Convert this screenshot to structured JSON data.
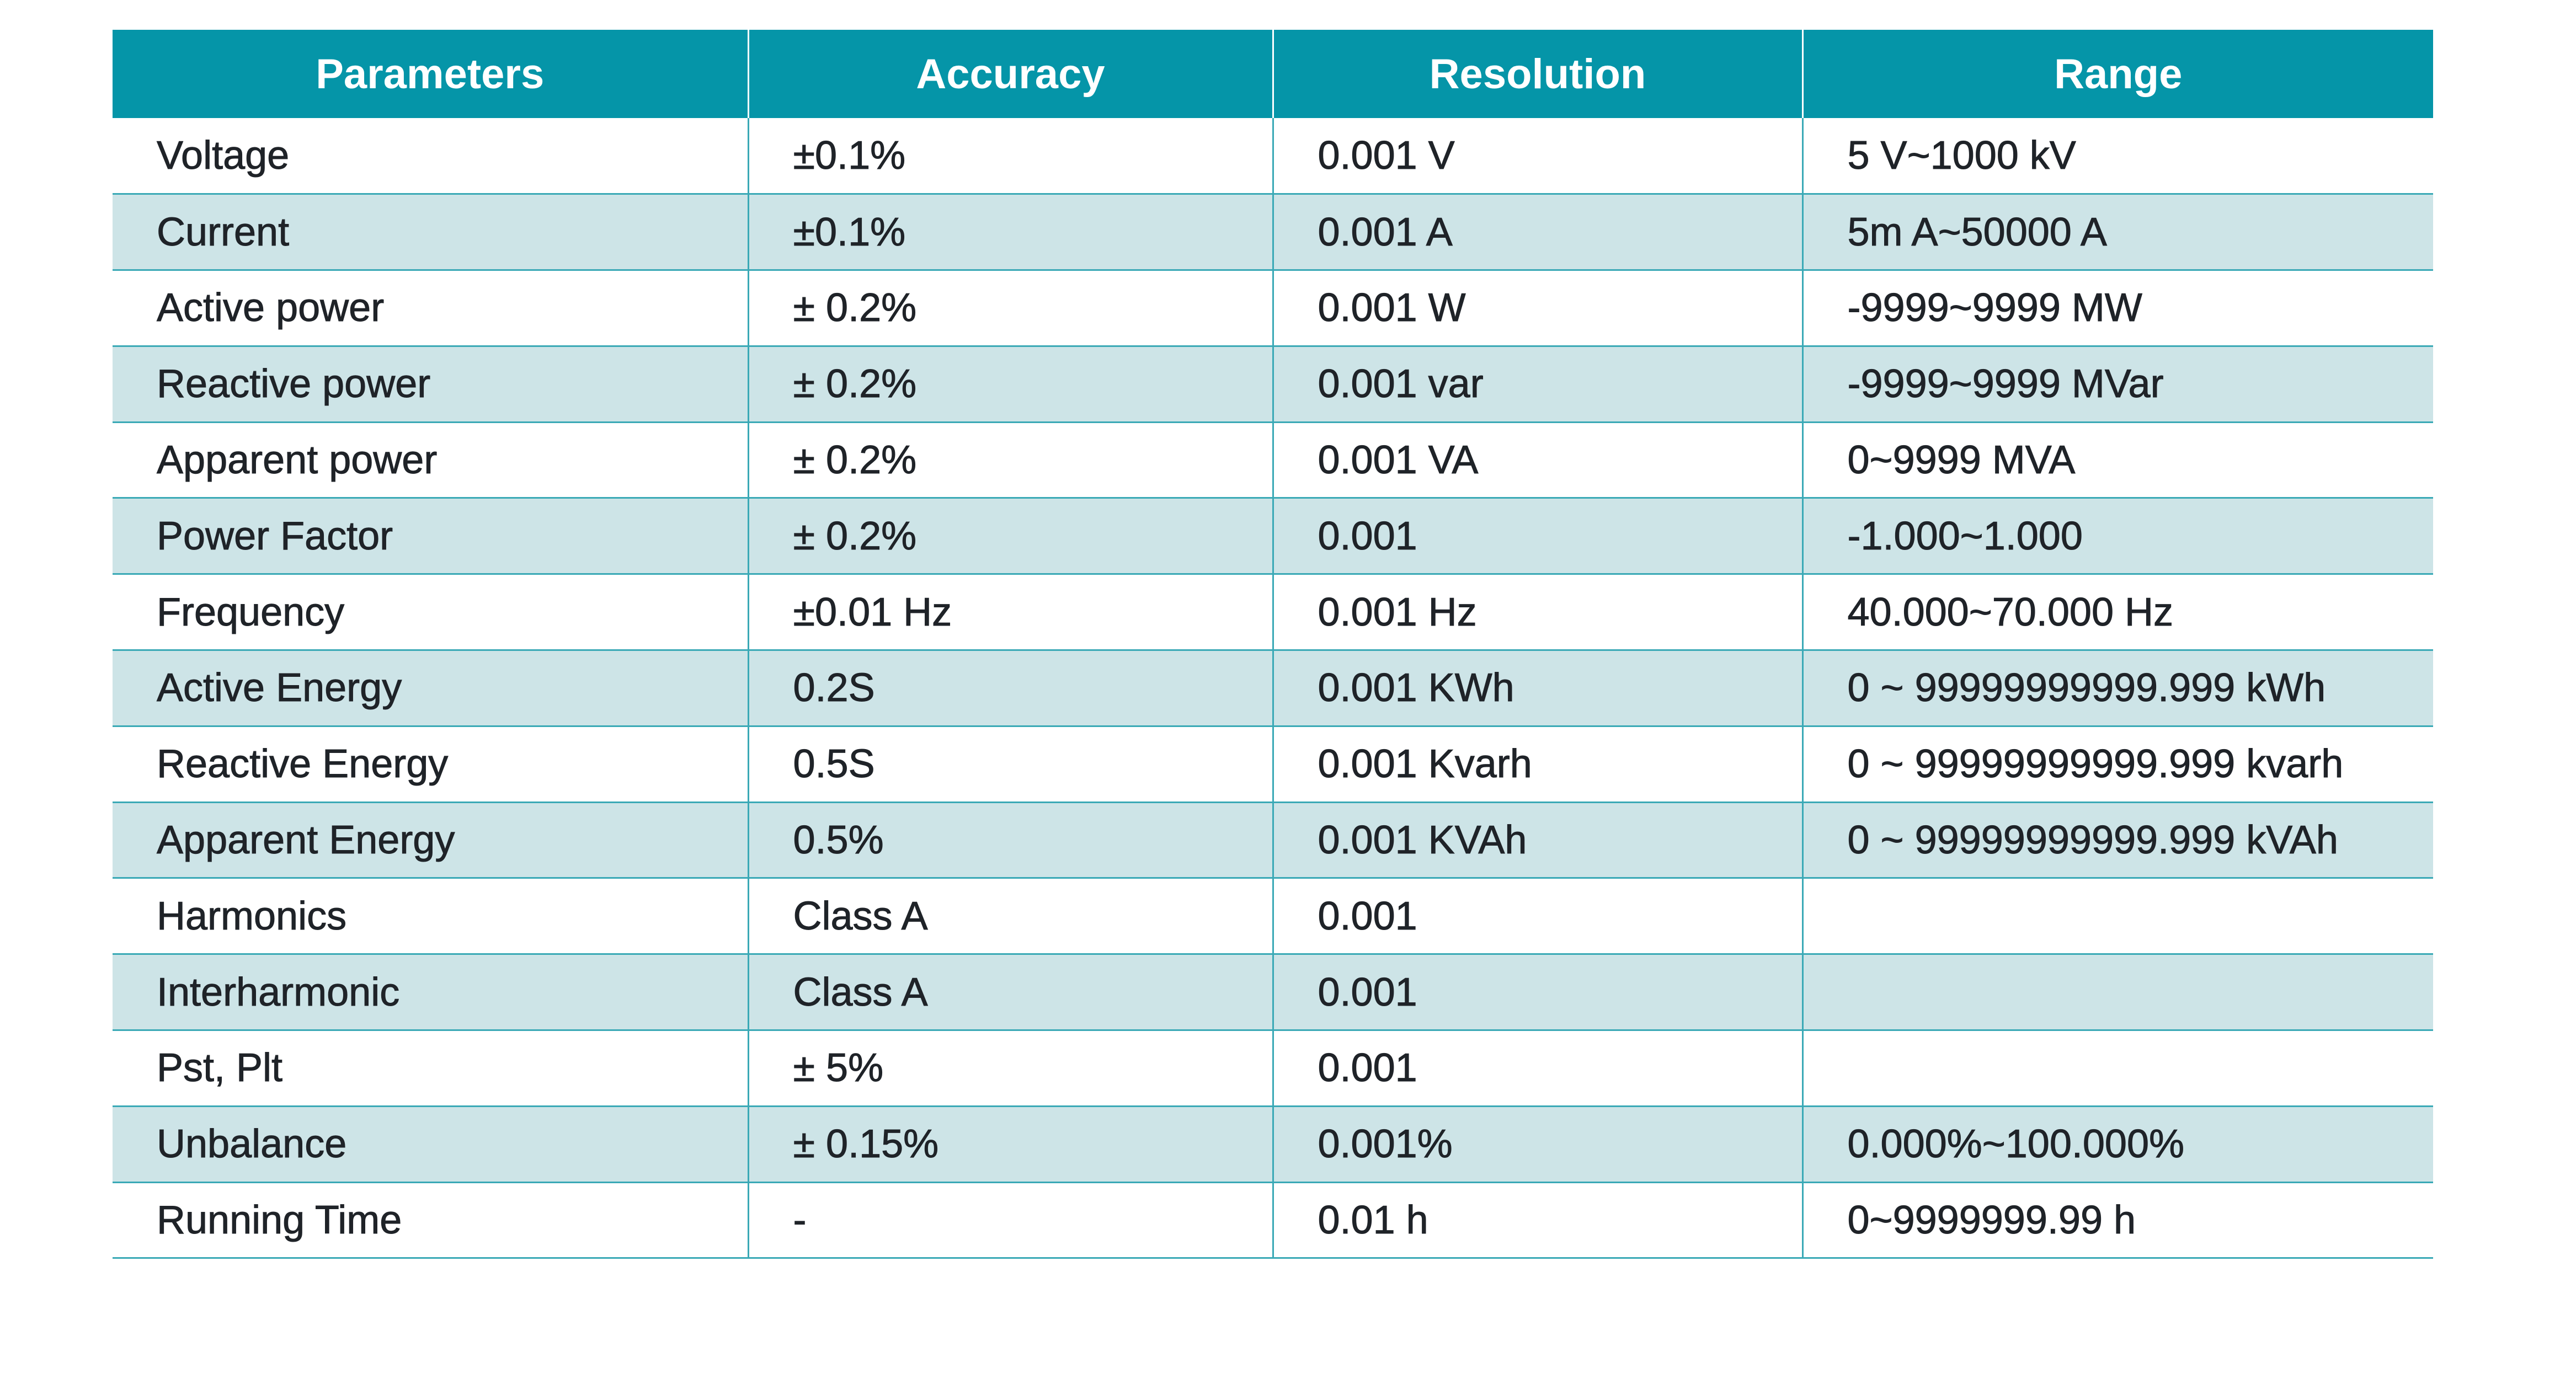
{
  "table": {
    "headers": [
      "Parameters",
      "Accuracy",
      "Resolution",
      "Range"
    ],
    "rows": [
      [
        "Voltage",
        "±0.1%",
        "0.001 V",
        "5 V~1000 kV"
      ],
      [
        "Current",
        "±0.1%",
        "0.001 A",
        "5m A~50000 A"
      ],
      [
        "Active power",
        "± 0.2%",
        "0.001 W",
        "-9999~9999 MW"
      ],
      [
        "Reactive power",
        "± 0.2%",
        "0.001 var",
        "-9999~9999 MVar"
      ],
      [
        "Apparent power",
        "± 0.2%",
        "0.001 VA",
        "0~9999 MVA"
      ],
      [
        "Power Factor",
        "± 0.2%",
        "0.001",
        "-1.000~1.000"
      ],
      [
        "Frequency",
        "±0.01 Hz",
        "0.001 Hz",
        "40.000~70.000 Hz"
      ],
      [
        "Active Energy",
        "0.2S",
        "0.001 KWh",
        "0 ~ 99999999999.999 kWh"
      ],
      [
        "Reactive Energy",
        "0.5S",
        "0.001 Kvarh",
        "0 ~ 99999999999.999 kvarh"
      ],
      [
        "Apparent Energy",
        "0.5%",
        "0.001 KVAh",
        "0 ~ 99999999999.999 kVAh"
      ],
      [
        "Harmonics",
        "Class A",
        "0.001",
        ""
      ],
      [
        "Interharmonic",
        "Class A",
        "0.001",
        ""
      ],
      [
        "Pst, Plt",
        "± 5%",
        "0.001",
        ""
      ],
      [
        "Unbalance",
        "± 0.15%",
        "0.001%",
        "0.000%~100.000%"
      ],
      [
        "Running Time",
        "-",
        "0.01 h",
        "0~9999999.99 h"
      ]
    ]
  },
  "colors": {
    "header_bg": "#0595a8",
    "header_text": "#ffffff",
    "stripe_bg": "#cde4e7",
    "grid_line": "#3aa9b6",
    "body_text": "#1f2328"
  }
}
